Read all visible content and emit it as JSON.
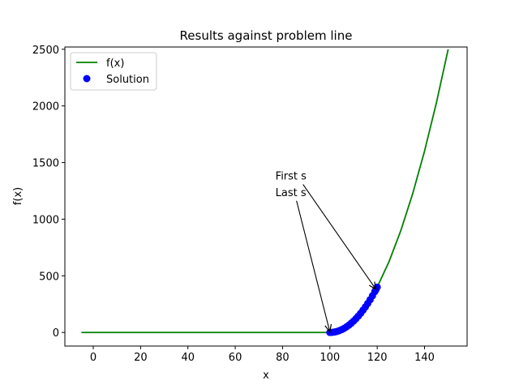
{
  "chart_data": {
    "type": "line",
    "title": "Results against problem line",
    "xlabel": "x",
    "ylabel": "f(x)",
    "xlim": [
      -12,
      158
    ],
    "ylim": [
      -120,
      2520
    ],
    "xticks": [
      0,
      20,
      40,
      60,
      80,
      100,
      120,
      140
    ],
    "yticks": [
      0,
      500,
      1000,
      1500,
      2000,
      2500
    ],
    "grid": false,
    "legend_position": "upper-left",
    "colors": {
      "line": "#008000",
      "points": "#0000ff"
    },
    "series": [
      {
        "name": "f(x)",
        "kind": "line",
        "x": [
          -5,
          0,
          20,
          40,
          60,
          80,
          100,
          101,
          102,
          104,
          106,
          108,
          110,
          112,
          114,
          116,
          118,
          120,
          125,
          130,
          135,
          140,
          145,
          150
        ],
        "y": [
          0,
          0,
          0,
          0,
          0,
          0,
          0,
          1,
          4,
          16,
          36,
          64,
          100,
          144,
          196,
          256,
          324,
          400,
          625,
          900,
          1225,
          1600,
          2025,
          2500
        ]
      },
      {
        "name": "Solution",
        "kind": "scatter",
        "x": [
          100,
          101,
          102,
          103,
          104,
          105,
          106,
          107,
          108,
          109,
          110,
          111,
          112,
          113,
          114,
          115,
          116,
          117,
          118,
          119,
          119.5,
          120
        ],
        "y": [
          0,
          1,
          4,
          9,
          16,
          25,
          36,
          49,
          64,
          81,
          100,
          121,
          144,
          169,
          196,
          225,
          256,
          289,
          324,
          361,
          380,
          400
        ]
      }
    ],
    "annotations": [
      {
        "text": "First s",
        "text_x": 77,
        "text_y": 1350,
        "arrow_x": 119.5,
        "arrow_y": 380
      },
      {
        "text": "Last s",
        "text_x": 77,
        "text_y": 1205,
        "arrow_x": 100,
        "arrow_y": 5
      }
    ]
  }
}
